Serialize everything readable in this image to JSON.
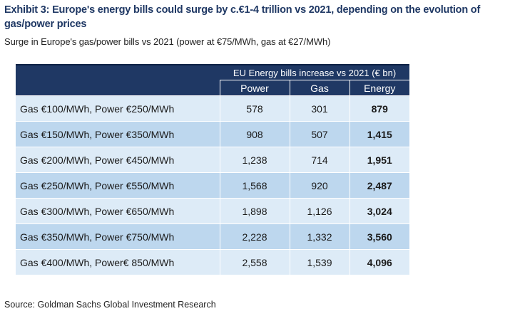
{
  "title": "Exhibit 3: Europe's energy bills could surge by c.€1-4 trillion vs 2021, depending on the evolution of gas/power prices",
  "subtitle": "Surge in Europe's gas/power bills vs 2021 (power at €75/MWh, gas at €27/MWh)",
  "source": "Source: Goldman Sachs Global Investment Research",
  "colors": {
    "header_bg": "#1f3864",
    "row_light": "#ddebf7",
    "row_dark": "#bdd7ee",
    "title_color": "#1f3864"
  },
  "chart_data": {
    "type": "table",
    "title": "Exhibit 3: Europe's energy bills could surge by c.€1-4 trillion vs 2021, depending on the evolution of gas/power prices",
    "group_header": "EU Energy bills increase vs 2021 (€ bn)",
    "columns": [
      "Power",
      "Gas",
      "Energy"
    ],
    "rows": [
      {
        "scenario": "Gas €100/MWh, Power €250/MWh",
        "power": "578",
        "gas": "301",
        "energy": "879"
      },
      {
        "scenario": "Gas €150/MWh, Power €350/MWh",
        "power": "908",
        "gas": "507",
        "energy": "1,415"
      },
      {
        "scenario": "Gas €200/MWh, Power €450/MWh",
        "power": "1,238",
        "gas": "714",
        "energy": "1,951"
      },
      {
        "scenario": "Gas €250/MWh, Power €550/MWh",
        "power": "1,568",
        "gas": "920",
        "energy": "2,487"
      },
      {
        "scenario": "Gas €300/MWh, Power €650/MWh",
        "power": "1,898",
        "gas": "1,126",
        "energy": "3,024"
      },
      {
        "scenario": "Gas €350/MWh, Power €750/MWh",
        "power": "2,228",
        "gas": "1,332",
        "energy": "3,560"
      },
      {
        "scenario": "Gas €400/MWh, Power€ 850/MWh",
        "power": "2,558",
        "gas": "1,539",
        "energy": "4,096"
      }
    ]
  }
}
